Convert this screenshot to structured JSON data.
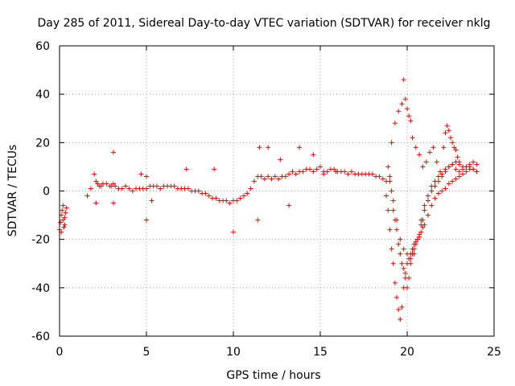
{
  "chart_data": {
    "type": "scatter",
    "title": "Day 285 of 2011, Sidereal Day-to-day VTEC variation (SDTVAR) for receiver nklg",
    "xlabel": "GPS time / hours",
    "ylabel": "SDTVAR / TECUs",
    "xlim": [
      0,
      25
    ],
    "ylim": [
      -60,
      60
    ],
    "xticks": [
      0,
      5,
      10,
      15,
      20,
      25
    ],
    "yticks": [
      -60,
      -40,
      -20,
      0,
      20,
      40,
      60
    ],
    "grid": true,
    "marker": "+",
    "series": [
      {
        "name": "SDTVAR",
        "color": "#ff0000",
        "x": [
          0.0,
          0.05,
          0.1,
          0.15,
          0.2,
          0.25,
          0.3,
          0.35,
          0.4,
          0.1,
          0.3,
          0.2,
          1.6,
          1.8,
          2.0,
          2.1,
          2.2,
          2.3,
          2.4,
          2.5,
          2.7,
          2.9,
          3.0,
          3.1,
          3.2,
          3.4,
          3.6,
          3.8,
          4.0,
          4.2,
          4.4,
          4.6,
          4.8,
          5.0,
          5.2,
          5.4,
          5.6,
          5.8,
          6.0,
          6.2,
          6.4,
          6.6,
          6.8,
          7.0,
          7.2,
          7.4,
          7.6,
          7.8,
          8.0,
          8.2,
          8.4,
          8.6,
          8.8,
          9.0,
          9.2,
          9.4,
          9.6,
          9.8,
          10.0,
          10.2,
          10.4,
          10.6,
          10.8,
          11.0,
          11.2,
          11.4,
          11.6,
          11.8,
          12.0,
          12.2,
          12.4,
          12.6,
          12.8,
          13.0,
          13.2,
          13.4,
          13.6,
          13.8,
          14.0,
          14.2,
          14.4,
          14.6,
          14.8,
          15.0,
          15.2,
          15.4,
          15.6,
          15.8,
          16.0,
          16.2,
          16.4,
          16.6,
          16.8,
          17.0,
          17.2,
          17.4,
          17.6,
          17.8,
          18.0,
          18.2,
          18.4,
          18.6,
          18.8,
          2.1,
          3.1,
          3.1,
          4.7,
          5.0,
          5.0,
          5.3,
          7.3,
          8.9,
          10.0,
          11.5,
          11.4,
          12.0,
          12.7,
          13.2,
          13.8,
          14.6,
          15.2,
          15.9,
          18.8,
          18.9,
          19.0,
          19.1,
          19.2,
          19.3,
          19.4,
          19.5,
          19.6,
          19.7,
          19.8,
          19.9,
          20.0,
          20.1,
          20.2,
          20.3,
          20.4,
          20.5,
          20.6,
          20.7,
          20.8,
          20.9,
          21.0,
          21.2,
          21.4,
          21.6,
          21.8,
          22.0,
          22.2,
          22.4,
          22.6,
          22.8,
          23.0,
          23.2,
          23.4,
          23.6,
          23.8,
          24.0,
          19.1,
          19.3,
          19.5,
          19.7,
          19.8,
          19.9,
          20.0,
          20.1,
          20.2,
          20.3,
          20.5,
          20.7,
          20.9,
          21.1,
          21.3,
          21.5,
          21.7,
          21.9,
          22.1,
          22.2,
          22.3,
          22.4,
          22.5,
          22.6,
          22.7,
          22.8,
          22.9,
          23.0,
          18.9,
          19.0,
          19.1,
          19.2,
          19.3,
          19.4,
          19.5,
          19.6,
          19.7,
          19.8,
          19.9,
          20.0,
          20.1,
          20.2,
          20.3,
          20.4,
          20.5,
          20.6,
          20.7,
          20.8,
          20.9,
          21.0,
          21.2,
          21.4,
          21.6,
          21.8,
          22.0,
          22.2,
          22.4,
          22.6,
          22.8,
          23.0,
          23.2,
          23.4,
          23.6,
          23.8,
          24.0,
          19.0,
          19.2,
          19.4,
          19.6,
          19.8,
          20.0,
          20.2,
          20.4,
          20.6,
          20.8,
          21.0,
          21.2,
          21.4,
          21.6,
          21.8,
          22.0,
          22.2,
          22.4,
          22.6,
          22.8,
          23.0,
          23.2,
          23.4,
          23.6,
          23.8,
          24.0
        ],
        "y": [
          -16,
          -13,
          -10,
          -8,
          -12,
          -15,
          -11,
          -9,
          -7,
          -17,
          -14,
          -6,
          -2,
          1,
          7,
          4,
          3,
          2,
          2,
          3,
          3,
          2,
          2,
          3,
          2,
          1,
          1,
          2,
          1,
          0,
          1,
          1,
          1,
          1,
          2,
          2,
          2,
          1,
          2,
          2,
          2,
          2,
          1,
          1,
          1,
          1,
          0,
          0,
          0,
          -1,
          -1,
          -2,
          -3,
          -3,
          -4,
          -4,
          -4,
          -5,
          -4,
          -4,
          -3,
          -2,
          -1,
          1,
          4,
          6,
          6,
          5,
          6,
          5,
          6,
          5,
          6,
          6,
          7,
          8,
          7,
          8,
          8,
          9,
          9,
          8,
          9,
          10,
          8,
          8,
          9,
          9,
          8,
          8,
          8,
          7,
          8,
          7,
          7,
          7,
          7,
          7,
          7,
          6,
          6,
          5,
          4,
          -5,
          16,
          -5,
          7,
          -12,
          6,
          -4,
          9,
          9,
          -17,
          18,
          -12,
          18,
          13,
          -6,
          18,
          15,
          7,
          8,
          -2,
          -8,
          -16,
          -24,
          -30,
          -38,
          -44,
          -49,
          -53,
          -48,
          -40,
          -34,
          -30,
          -28,
          -26,
          -24,
          -22,
          -21,
          -20,
          -19,
          -17,
          -15,
          -14,
          -10,
          -6,
          -3,
          -1,
          0,
          1,
          3,
          4,
          5,
          6,
          7,
          8,
          9,
          9,
          8,
          20,
          28,
          33,
          36,
          46,
          38,
          34,
          31,
          29,
          22,
          18,
          15,
          10,
          12,
          16,
          18,
          12,
          8,
          18,
          24,
          27,
          25,
          22,
          20,
          18,
          17,
          14,
          12,
          10,
          6,
          0,
          -8,
          -12,
          -16,
          -22,
          -26,
          -30,
          -32,
          -36,
          -40,
          -36,
          -30,
          -26,
          -24,
          -22,
          -20,
          -18,
          -14,
          -12,
          -8,
          -4,
          0,
          2,
          4,
          6,
          8,
          10,
          11,
          12,
          11,
          10,
          10,
          11,
          12,
          11,
          4,
          -4,
          -12,
          -20,
          -24,
          -26,
          -28,
          -26,
          -20,
          -12,
          -6,
          -2,
          2,
          4,
          6,
          7,
          9,
          10,
          11,
          9,
          8,
          9,
          10,
          10,
          9,
          8
        ]
      }
    ]
  }
}
